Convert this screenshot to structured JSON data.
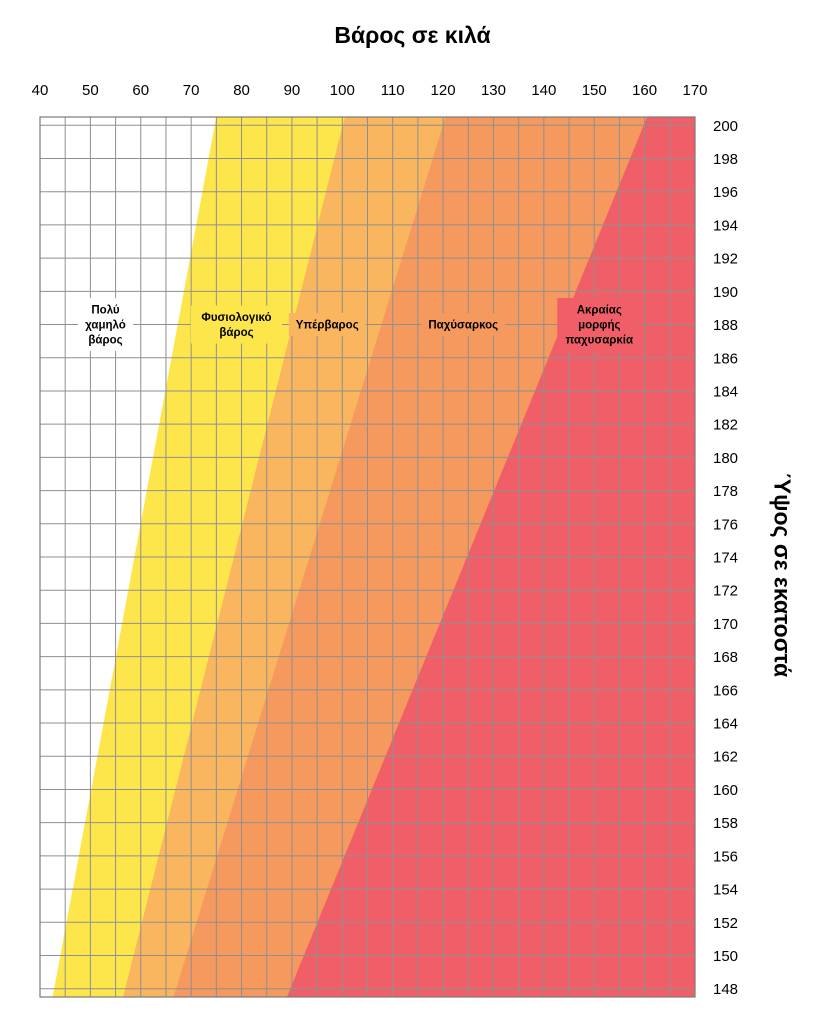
{
  "chart_data": {
    "type": "area",
    "title": "",
    "xlabel": "Βάρος σε κιλά",
    "ylabel": "Ύψος σε εκατοστά",
    "xlim": [
      40,
      170
    ],
    "ylim": [
      147.5,
      200.5
    ],
    "x_ticks": [
      40,
      50,
      60,
      70,
      80,
      90,
      100,
      110,
      120,
      130,
      140,
      150,
      160,
      170
    ],
    "y_ticks": [
      148,
      150,
      152,
      154,
      156,
      158,
      160,
      162,
      164,
      166,
      168,
      170,
      172,
      174,
      176,
      178,
      180,
      182,
      184,
      186,
      188,
      190,
      192,
      194,
      196,
      198,
      200
    ],
    "x_axis_position": "top",
    "y_axis_position": "right",
    "grid": true,
    "bands": [
      {
        "name": "Πολύ χαμηλό βάρος",
        "color": "#ffffff",
        "lower_boundary": null,
        "label_lines": [
          "Πολύ",
          "χαμηλό",
          "βάρος"
        ],
        "label_weight": 53,
        "label_height": 188
      },
      {
        "name": "Φυσιολογικό βάρος",
        "color": "#fde64b",
        "lower_boundary": [
          [
            42.5,
            147.5
          ],
          [
            75,
            200.5
          ]
        ],
        "label_lines": [
          "Φυσιολογικό",
          "βάρος"
        ],
        "label_weight": 79,
        "label_height": 188
      },
      {
        "name": "Υπέρβαρος",
        "color": "#f9b65e",
        "lower_boundary": [
          [
            56.5,
            147.5
          ],
          [
            100.5,
            200.5
          ]
        ],
        "label_lines": [
          "Υπέρβαρος"
        ],
        "label_weight": 97,
        "label_height": 188
      },
      {
        "name": "Παχύσαρκος",
        "color": "#f5995e",
        "lower_boundary": [
          [
            66.5,
            147.5
          ],
          [
            120.5,
            200.5
          ]
        ],
        "label_lines": [
          "Παχύσαρκος"
        ],
        "label_weight": 124,
        "label_height": 188
      },
      {
        "name": "Ακραίας μορφής παχυσαρκία",
        "color": "#f05f68",
        "lower_boundary": [
          [
            89,
            147.5
          ],
          [
            160.5,
            200.5
          ]
        ],
        "label_lines": [
          "Ακραίας",
          "μορφής",
          "παχυσαρκία"
        ],
        "label_weight": 151,
        "label_height": 188
      }
    ]
  }
}
